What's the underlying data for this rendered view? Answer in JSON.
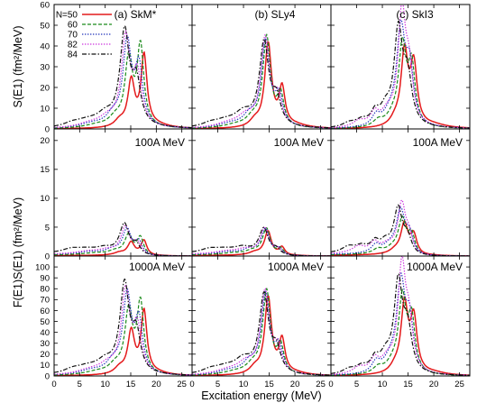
{
  "chart_data": {
    "type": "line",
    "xlabel": "Excitation energy (MeV)",
    "ylabel_top": "S(E1) (fm²/MeV)",
    "ylabel_bottom": "F(E1)S(E1) (fm²/MeV)",
    "x_ticks": [
      "0",
      "5",
      "10",
      "15",
      "20",
      "25"
    ],
    "xlim": [
      0,
      27
    ],
    "rows": [
      {
        "ylim": [
          0,
          60
        ],
        "y_ticks": [
          "0",
          "10",
          "20",
          "30",
          "40",
          "50",
          "60"
        ]
      },
      {
        "ylim": [
          0,
          22
        ],
        "y_ticks": [
          "0",
          "5",
          "10",
          "15",
          "20"
        ]
      },
      {
        "ylim": [
          0,
          110
        ],
        "y_ticks": [
          "0",
          "10",
          "20",
          "30",
          "40",
          "50",
          "60",
          "70",
          "80",
          "90",
          "100"
        ]
      }
    ],
    "columns": [
      {
        "title": "(a) SkM*"
      },
      {
        "title": "(b) SLy4"
      },
      {
        "title": "(c) SkI3"
      }
    ],
    "row_annotations": [
      "",
      "100A MeV",
      "1000A MeV"
    ],
    "legend": {
      "placement": "top-left of panel (a)",
      "entries": [
        {
          "label": "N=50",
          "color": "#e41a1c",
          "dash": "solid"
        },
        {
          "label": "60",
          "color": "#1a8a1a",
          "dash": "dashed"
        },
        {
          "label": "70",
          "color": "#2233bb",
          "dash": "dotted"
        },
        {
          "label": "82",
          "color": "#cc33dd",
          "dash": "dotted"
        },
        {
          "label": "84",
          "color": "#111111",
          "dash": "dashdot"
        }
      ]
    },
    "series_peaks": {
      "description": "Lorentzian peak parameters [center MeV, height in row-0 units, width MeV]; rows 1 and 2 are derived by an energy-dependent photon-flux factor",
      "colA": {
        "N=50": [
          [
            15.1,
            22,
            0.8
          ],
          [
            17.6,
            34,
            0.7
          ],
          [
            12.8,
            3,
            1.2
          ],
          [
            20,
            1.5,
            3
          ]
        ],
        "60": [
          [
            14.6,
            32,
            0.9
          ],
          [
            16.9,
            38,
            0.8
          ],
          [
            12.0,
            4,
            1.5
          ],
          [
            8.5,
            1.5,
            3
          ]
        ],
        "70": [
          [
            14.3,
            40,
            1.0
          ],
          [
            16.6,
            28,
            0.9
          ],
          [
            11.5,
            5,
            1.5
          ],
          [
            7.5,
            2,
            3
          ]
        ],
        "82": [
          [
            14.0,
            42,
            1.0
          ],
          [
            16.3,
            24,
            1.0
          ],
          [
            10.5,
            4,
            2
          ],
          [
            7,
            2,
            3
          ]
        ],
        "84": [
          [
            13.8,
            45,
            1.1
          ],
          [
            16.1,
            20,
            1.0
          ],
          [
            10,
            5,
            2
          ],
          [
            6.5,
            3,
            3
          ],
          [
            3.5,
            1.5,
            2
          ]
        ]
      },
      "colB": {
        "N=50": [
          [
            14.8,
            40,
            0.8
          ],
          [
            17.5,
            18,
            0.7
          ],
          [
            12.2,
            3,
            1.2
          ],
          [
            20,
            1.5,
            3
          ]
        ],
        "60": [
          [
            14.5,
            43,
            0.9
          ],
          [
            17.2,
            15,
            0.8
          ],
          [
            11.8,
            4,
            1.5
          ],
          [
            8.5,
            1.5,
            3
          ]
        ],
        "70": [
          [
            14.3,
            41,
            1.0
          ],
          [
            16.9,
            14,
            0.9
          ],
          [
            11.2,
            5,
            1.5
          ],
          [
            7.5,
            2,
            3
          ]
        ],
        "82": [
          [
            14.2,
            42,
            1.0
          ],
          [
            16.6,
            13,
            1.0
          ],
          [
            10.5,
            5,
            2
          ],
          [
            7,
            2,
            3
          ]
        ],
        "84": [
          [
            14.0,
            40,
            1.1
          ],
          [
            16.4,
            12,
            1.0
          ],
          [
            10,
            6,
            2
          ],
          [
            6.5,
            3,
            3
          ],
          [
            3.5,
            1.5,
            2
          ]
        ]
      },
      "colC": {
        "N=50": [
          [
            14.3,
            35,
            0.8
          ],
          [
            16.1,
            29,
            0.8
          ],
          [
            12.5,
            3,
            1.2
          ],
          [
            20,
            1.5,
            3
          ]
        ],
        "60": [
          [
            13.9,
            38,
            0.9
          ],
          [
            15.7,
            28,
            0.8
          ],
          [
            9.2,
            3,
            1.2
          ],
          [
            12,
            4,
            1.5
          ]
        ],
        "70": [
          [
            13.6,
            45,
            1.0
          ],
          [
            15.3,
            26,
            0.9
          ],
          [
            8.8,
            5,
            1.0
          ],
          [
            11.5,
            5,
            1.5
          ]
        ],
        "82": [
          [
            13.8,
            53,
            0.9
          ],
          [
            15.2,
            24,
            0.9
          ],
          [
            8.5,
            6,
            1.0
          ],
          [
            11,
            6,
            1.5
          ],
          [
            5.5,
            3,
            1.5
          ]
        ],
        "84": [
          [
            13.1,
            45,
            1.0
          ],
          [
            14.9,
            22,
            1.0
          ],
          [
            8.6,
            6,
            1.0
          ],
          [
            10.6,
            7,
            1.2
          ],
          [
            6,
            3,
            1.5
          ],
          [
            3.5,
            2,
            1.5
          ]
        ]
      }
    }
  }
}
